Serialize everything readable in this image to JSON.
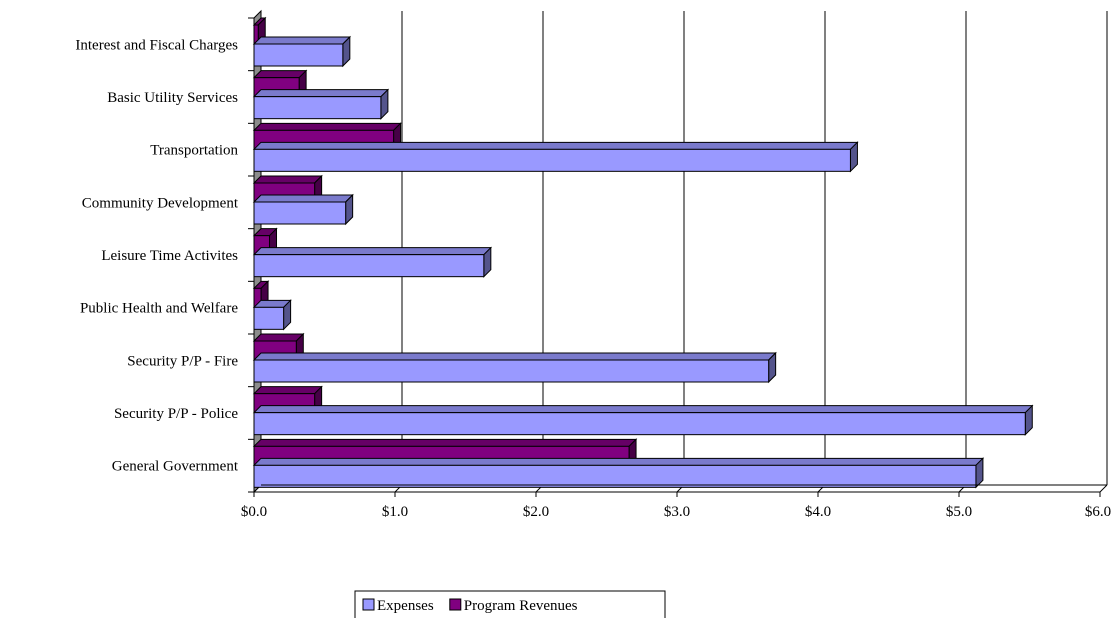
{
  "chart_data": {
    "type": "bar",
    "orientation": "horizontal",
    "categories": [
      "Interest and Fiscal Charges",
      "Basic Utility Services",
      "Transportation",
      "Community Development",
      "Leisure Time Activites",
      "Public Health and Welfare",
      "Security P/P - Fire",
      "Security P/P - Police",
      "General Government"
    ],
    "series": [
      {
        "name": "Expenses",
        "values": [
          0.63,
          0.9,
          4.23,
          0.65,
          1.63,
          0.21,
          3.65,
          5.47,
          5.12
        ],
        "color": "#9999ff"
      },
      {
        "name": "Program Revenues",
        "values": [
          0.03,
          0.32,
          0.99,
          0.43,
          0.11,
          0.05,
          0.3,
          0.43,
          2.66
        ],
        "color": "#800080"
      }
    ],
    "xlim": [
      0,
      6
    ],
    "xticks": [
      "$0.0",
      "$1.0",
      "$2.0",
      "$3.0",
      "$4.0",
      "$5.0",
      "$6.0"
    ],
    "title": "",
    "xlabel": "",
    "ylabel": "",
    "grid": "vertical",
    "legend_position": "bottom",
    "style": "3d"
  }
}
